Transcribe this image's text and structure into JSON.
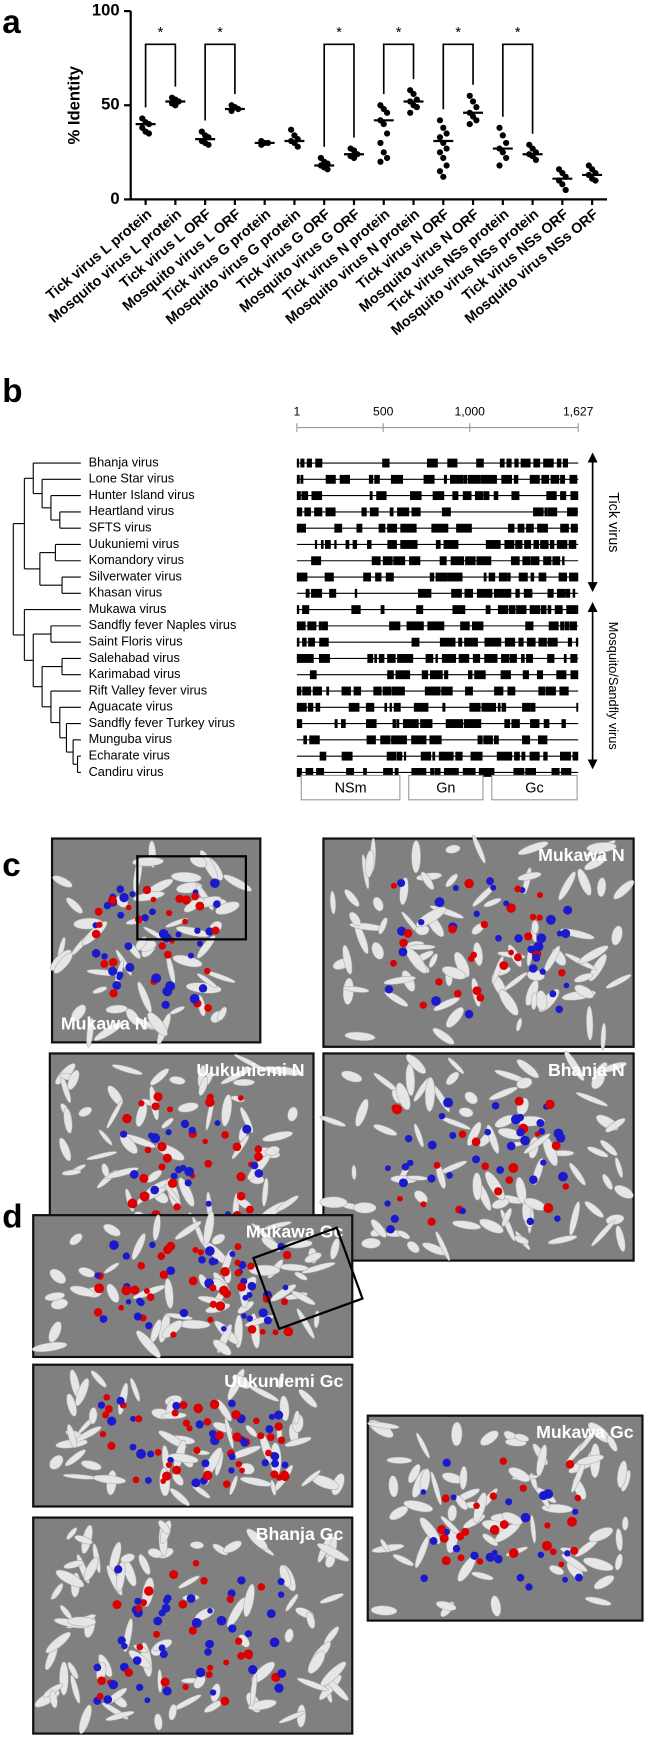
{
  "chart_data": {
    "type": "dot",
    "ylabel": "% Identity",
    "categories": [
      "Tick virus L protein",
      "Mosquito virus L protein",
      "Tick virus L ORF",
      "Mosquito virus L ORF",
      "Tick virus G protein",
      "Mosquito virus G protein",
      "Tick virus G ORF",
      "Mosquito virus G ORF",
      "Tick virus N protein",
      "Mosquito virus N protein",
      "Tick virus N ORF",
      "Mosquito virus N ORF",
      "Tick virus NSs protein",
      "Mosquito virus NSs protein",
      "Tick virus NSs ORF",
      "Mosquito virus NSs ORF"
    ],
    "values": [
      40,
      52,
      32,
      48,
      30,
      31,
      18,
      24,
      42,
      52,
      31,
      46,
      27,
      24,
      11,
      13
    ],
    "points": [
      [
        43,
        41,
        40,
        38,
        36,
        35
      ],
      [
        54,
        53,
        52,
        51,
        50
      ],
      [
        36,
        34,
        33,
        31,
        30,
        29
      ],
      [
        50,
        49,
        48,
        47
      ],
      [
        31,
        30,
        30,
        29
      ],
      [
        37,
        34,
        32,
        31,
        30,
        28
      ],
      [
        22,
        20,
        19,
        18,
        17,
        16
      ],
      [
        27,
        26,
        24,
        23,
        22
      ],
      [
        50,
        48,
        46,
        42,
        40,
        35,
        30,
        25,
        22,
        20
      ],
      [
        58,
        56,
        53,
        52,
        50,
        49,
        46
      ],
      [
        42,
        38,
        35,
        33,
        30,
        27,
        25,
        22,
        18,
        15,
        12
      ],
      [
        55,
        52,
        49,
        46,
        44,
        42,
        40
      ],
      [
        38,
        34,
        30,
        27,
        25,
        22,
        18
      ],
      [
        29,
        27,
        25,
        24,
        23,
        21
      ],
      [
        16,
        14,
        12,
        10,
        8,
        5
      ],
      [
        18,
        16,
        14,
        13,
        11,
        10
      ]
    ],
    "color": "#000000",
    "ylim": [
      0,
      100
    ],
    "yticks": [
      0,
      50,
      100
    ],
    "annotations": [
      {
        "text": "*",
        "between": [
          0,
          1
        ]
      },
      {
        "text": "*",
        "between": [
          2,
          3
        ]
      },
      {
        "text": "*",
        "between": [
          6,
          7
        ]
      },
      {
        "text": "*",
        "between": [
          8,
          9
        ]
      },
      {
        "text": "*",
        "between": [
          10,
          11
        ]
      },
      {
        "text": "*",
        "between": [
          12,
          13
        ]
      }
    ]
  },
  "panel_labels": [
    "a",
    "b",
    "c",
    "d"
  ],
  "alignment": {
    "viruses": [
      "Bhanja virus",
      "Lone Star virus",
      "Hunter Island virus",
      "Heartland virus",
      "SFTS virus",
      "Uukuniemi virus",
      "Komandory virus",
      "Silverwater virus",
      "Khasan virus",
      "Mukawa virus",
      "Sandfly fever Naples virus",
      "Saint Floris virus",
      "Salehabad virus",
      "Karimabad virus",
      "Rift Valley fever virus",
      "Aguacate virus",
      "Sandfly fever Turkey virus",
      "Munguba virus",
      "Echarate virus",
      "Candiru virus"
    ],
    "xlim": [
      1,
      1627
    ],
    "xticks": [
      1,
      500,
      {
        "value": 1000,
        "label": "1,000"
      },
      {
        "value": 1627,
        "label": "1,627"
      }
    ],
    "domains": [
      "NSm",
      "Gn",
      "Gc"
    ],
    "groups": [
      "Tick virus",
      "Mosquito/Sandfly virus"
    ]
  },
  "structures_n": [
    "Mukawa N",
    "Mukawa N",
    "Uukuniemi N",
    "Bhanja N"
  ],
  "structures_gc": [
    "Mukawa Gc",
    "Uukuniemi Gc",
    "Bhanja Gc",
    "Mukawa Gc"
  ]
}
